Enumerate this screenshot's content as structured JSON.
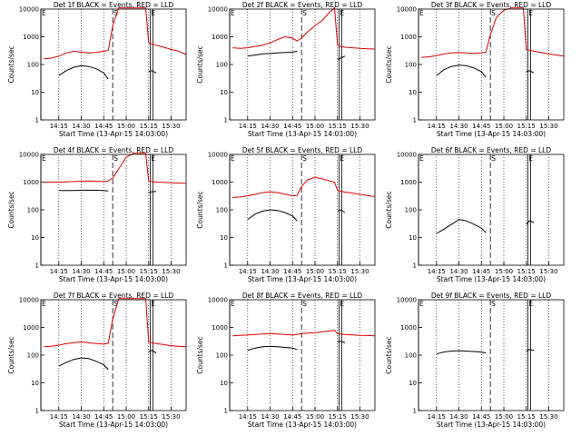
{
  "chart_data": {
    "type": "line",
    "start_time": "13-Apr-15 14:03:00",
    "xlabel": "Start Time (13-Apr-15 14:03:00)",
    "ylabel": "Counts/sec",
    "x_ticks": [
      "14:15",
      "14:30",
      "14:45",
      "15:00",
      "15:15",
      "15:30"
    ],
    "y_ticks": [
      "1",
      "10",
      "100",
      "1000",
      "10000"
    ],
    "y_scale": "log",
    "ylim": [
      1,
      10000
    ],
    "xlim": [
      "14:03",
      "15:40"
    ],
    "colors": {
      "events": "#000000",
      "lld": "#dd0000"
    },
    "panels": [
      {
        "title": "Det 1f BLACK = Events, RED = LLD",
        "markers": [
          {
            "label": "E",
            "x": "14:03"
          },
          {
            "label": "S",
            "x": "14:51"
          },
          {
            "label": "E",
            "x": "15:16"
          }
        ],
        "x": [
          "14:05",
          "14:10",
          "14:15",
          "14:20",
          "14:25",
          "14:30",
          "14:35",
          "14:40",
          "14:45",
          "14:48",
          "14:51",
          "14:55",
          "15:00",
          "15:05",
          "15:10",
          "15:13",
          "15:15",
          "15:17",
          "15:20",
          "15:25",
          "15:30",
          "15:35",
          "15:40"
        ],
        "lld": [
          160,
          170,
          200,
          260,
          300,
          280,
          260,
          270,
          300,
          320,
          2500,
          11000,
          11000,
          11000,
          11000,
          11000,
          600,
          550,
          500,
          420,
          350,
          300,
          230
        ],
        "events": [
          null,
          null,
          40,
          60,
          80,
          90,
          85,
          70,
          50,
          30,
          null,
          null,
          null,
          null,
          null,
          null,
          55,
          60,
          50,
          null,
          null,
          null,
          null
        ]
      },
      {
        "title": "Det 2f BLACK = Events, RED = LLD",
        "markers": [
          {
            "label": "E",
            "x": "14:03"
          },
          {
            "label": "S",
            "x": "14:51"
          },
          {
            "label": "E",
            "x": "15:16"
          }
        ],
        "x": [
          "14:05",
          "14:10",
          "14:15",
          "14:20",
          "14:25",
          "14:30",
          "14:35",
          "14:40",
          "14:45",
          "14:48",
          "14:51",
          "14:55",
          "15:00",
          "15:05",
          "15:10",
          "15:13",
          "15:15",
          "15:17",
          "15:20",
          "15:25",
          "15:30",
          "15:35",
          "15:40"
        ],
        "lld": [
          400,
          380,
          400,
          450,
          500,
          600,
          800,
          1000,
          900,
          700,
          900,
          1500,
          2500,
          4000,
          8000,
          11000,
          500,
          450,
          420,
          400,
          380,
          370,
          360
        ],
        "events": [
          null,
          null,
          200,
          220,
          240,
          250,
          260,
          270,
          280,
          300,
          null,
          null,
          null,
          null,
          null,
          null,
          150,
          170,
          200,
          null,
          null,
          null,
          null
        ]
      },
      {
        "title": "Det 3f BLACK = Events, RED = LLD",
        "markers": [
          {
            "label": "E",
            "x": "14:03"
          },
          {
            "label": "S",
            "x": "14:51"
          },
          {
            "label": "E",
            "x": "15:16"
          }
        ],
        "x": [
          "14:05",
          "14:10",
          "14:15",
          "14:20",
          "14:25",
          "14:30",
          "14:35",
          "14:40",
          "14:45",
          "14:48",
          "14:51",
          "14:55",
          "15:00",
          "15:05",
          "15:10",
          "15:13",
          "15:15",
          "15:17",
          "15:20",
          "15:25",
          "15:30",
          "15:35",
          "15:40"
        ],
        "lld": [
          180,
          190,
          210,
          240,
          260,
          270,
          260,
          250,
          260,
          280,
          1200,
          5000,
          9000,
          11000,
          11000,
          11000,
          350,
          330,
          300,
          270,
          240,
          220,
          200
        ],
        "events": [
          null,
          null,
          40,
          65,
          85,
          95,
          90,
          75,
          55,
          35,
          null,
          null,
          null,
          null,
          null,
          null,
          55,
          60,
          50,
          null,
          null,
          null,
          null
        ]
      },
      {
        "title": "Det 4f BLACK = Events, RED = LLD",
        "markers": [
          {
            "label": "E",
            "x": "14:03"
          },
          {
            "label": "S",
            "x": "14:51"
          },
          {
            "label": "E",
            "x": "15:16"
          }
        ],
        "x": [
          "14:05",
          "14:10",
          "14:15",
          "14:20",
          "14:25",
          "14:30",
          "14:35",
          "14:40",
          "14:45",
          "14:48",
          "14:51",
          "14:55",
          "15:00",
          "15:05",
          "15:10",
          "15:13",
          "15:15",
          "15:17",
          "15:20",
          "15:25",
          "15:30",
          "15:35",
          "15:40"
        ],
        "lld": [
          1000,
          1000,
          1000,
          1020,
          1050,
          1080,
          1100,
          1080,
          1050,
          1100,
          1400,
          3000,
          8000,
          11000,
          11000,
          11000,
          1100,
          1050,
          1000,
          980,
          950,
          930,
          900
        ],
        "events": [
          null,
          null,
          500,
          500,
          500,
          510,
          510,
          505,
          500,
          480,
          null,
          null,
          null,
          null,
          null,
          null,
          420,
          450,
          460,
          null,
          null,
          null,
          null
        ]
      },
      {
        "title": "Det 5f BLACK = Events, RED = LLD",
        "markers": [
          {
            "label": "E",
            "x": "14:03"
          },
          {
            "label": "S",
            "x": "14:51"
          },
          {
            "label": "E",
            "x": "15:16"
          }
        ],
        "x": [
          "14:05",
          "14:10",
          "14:15",
          "14:20",
          "14:25",
          "14:30",
          "14:35",
          "14:40",
          "14:45",
          "14:48",
          "14:51",
          "14:55",
          "15:00",
          "15:05",
          "15:10",
          "15:13",
          "15:15",
          "15:17",
          "15:20",
          "15:25",
          "15:30",
          "15:35",
          "15:40"
        ],
        "lld": [
          280,
          290,
          320,
          360,
          420,
          450,
          420,
          370,
          320,
          330,
          700,
          1200,
          1500,
          1300,
          1100,
          1000,
          500,
          470,
          440,
          400,
          360,
          330,
          300
        ],
        "events": [
          null,
          null,
          45,
          70,
          90,
          100,
          95,
          80,
          60,
          40,
          null,
          null,
          null,
          null,
          null,
          null,
          90,
          100,
          80,
          null,
          null,
          null,
          null
        ]
      },
      {
        "title": "Det 6f BLACK = Events, RED = LLD",
        "markers": [
          {
            "label": "E",
            "x": "14:03"
          },
          {
            "label": "S",
            "x": "14:51"
          },
          {
            "label": "E",
            "x": "15:16"
          }
        ],
        "x": [
          "14:05",
          "14:10",
          "14:15",
          "14:20",
          "14:25",
          "14:30",
          "14:35",
          "14:40",
          "14:45",
          "14:48",
          "14:51",
          "14:55",
          "15:00",
          "15:05",
          "15:10",
          "15:13",
          "15:15",
          "15:17",
          "15:20",
          "15:25",
          "15:30",
          "15:35",
          "15:40"
        ],
        "lld": [
          null,
          null,
          null,
          null,
          null,
          null,
          null,
          null,
          null,
          null,
          null,
          null,
          null,
          null,
          null,
          null,
          null,
          null,
          null,
          null,
          null,
          null,
          null
        ],
        "events": [
          null,
          null,
          14,
          20,
          30,
          45,
          40,
          30,
          22,
          15,
          null,
          null,
          null,
          null,
          null,
          null,
          30,
          40,
          35,
          null,
          null,
          null,
          null
        ]
      },
      {
        "title": "Det 7f BLACK = Events, RED = LLD",
        "markers": [
          {
            "label": "E",
            "x": "14:03"
          },
          {
            "label": "S",
            "x": "14:51"
          },
          {
            "label": "E",
            "x": "15:16"
          }
        ],
        "x": [
          "14:05",
          "14:10",
          "14:15",
          "14:20",
          "14:25",
          "14:30",
          "14:35",
          "14:40",
          "14:45",
          "14:48",
          "14:51",
          "14:55",
          "15:00",
          "15:05",
          "15:10",
          "15:13",
          "15:15",
          "15:17",
          "15:20",
          "15:25",
          "15:30",
          "15:35",
          "15:40"
        ],
        "lld": [
          200,
          210,
          230,
          260,
          280,
          300,
          280,
          260,
          250,
          270,
          2000,
          11000,
          11000,
          11000,
          11000,
          11000,
          300,
          280,
          260,
          240,
          220,
          210,
          200
        ],
        "events": [
          null,
          null,
          40,
          55,
          70,
          80,
          75,
          60,
          45,
          30,
          null,
          null,
          null,
          null,
          null,
          null,
          130,
          150,
          120,
          null,
          null,
          null,
          null
        ]
      },
      {
        "title": "Det 8f BLACK = Events, RED = LLD",
        "markers": [
          {
            "label": "E",
            "x": "14:03"
          },
          {
            "label": "S",
            "x": "14:51"
          },
          {
            "label": "E",
            "x": "15:16"
          }
        ],
        "x": [
          "14:05",
          "14:10",
          "14:15",
          "14:20",
          "14:25",
          "14:30",
          "14:35",
          "14:40",
          "14:45",
          "14:48",
          "14:51",
          "14:55",
          "15:00",
          "15:05",
          "15:10",
          "15:13",
          "15:15",
          "15:17",
          "15:20",
          "15:25",
          "15:30",
          "15:35",
          "15:40"
        ],
        "lld": [
          500,
          520,
          540,
          560,
          580,
          600,
          580,
          560,
          540,
          560,
          600,
          620,
          650,
          700,
          750,
          800,
          600,
          580,
          560,
          540,
          520,
          510,
          500
        ],
        "events": [
          null,
          null,
          150,
          180,
          200,
          210,
          200,
          190,
          180,
          160,
          null,
          null,
          null,
          null,
          null,
          null,
          300,
          320,
          280,
          null,
          null,
          null,
          null
        ]
      },
      {
        "title": "Det 9f BLACK = Events, RED = LLD",
        "markers": [
          {
            "label": "E",
            "x": "14:03"
          },
          {
            "label": "S",
            "x": "14:51"
          },
          {
            "label": "E",
            "x": "15:16"
          }
        ],
        "x": [
          "14:05",
          "14:10",
          "14:15",
          "14:20",
          "14:25",
          "14:30",
          "14:35",
          "14:40",
          "14:45",
          "14:48",
          "14:51",
          "14:55",
          "15:00",
          "15:05",
          "15:10",
          "15:13",
          "15:15",
          "15:17",
          "15:20",
          "15:25",
          "15:30",
          "15:35",
          "15:40"
        ],
        "lld": [
          null,
          null,
          null,
          null,
          null,
          null,
          null,
          null,
          null,
          null,
          null,
          null,
          null,
          null,
          null,
          null,
          null,
          null,
          null,
          null,
          null,
          null,
          null
        ],
        "events": [
          null,
          null,
          110,
          130,
          140,
          145,
          140,
          135,
          130,
          120,
          null,
          null,
          null,
          null,
          null,
          null,
          140,
          160,
          150,
          null,
          null,
          null,
          null
        ]
      }
    ]
  }
}
